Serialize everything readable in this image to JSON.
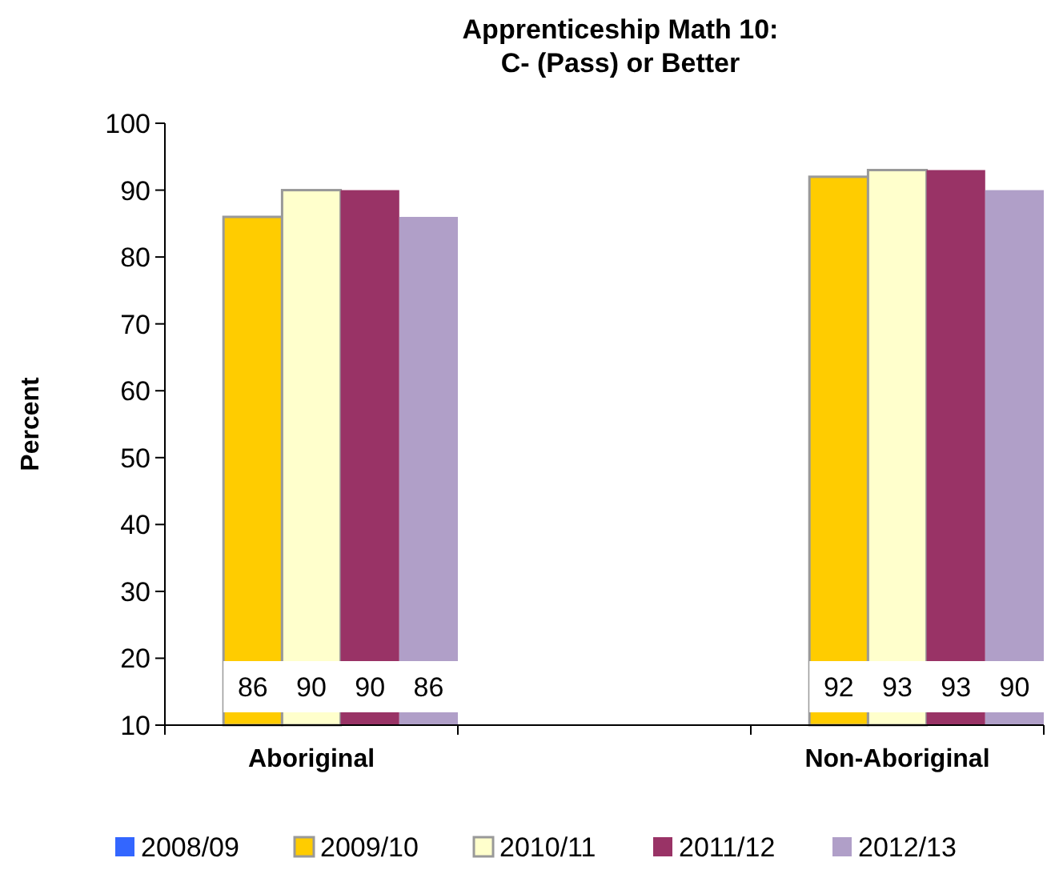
{
  "chart_data": {
    "type": "bar",
    "title": "Apprenticeship Math 10:\nC- (Pass) or Better",
    "ylabel": "Percent",
    "categories": [
      "Aboriginal",
      null,
      "Non-Aboriginal"
    ],
    "series": [
      {
        "name": "2008/09",
        "color": "#3366ff",
        "values": [
          null,
          null,
          null
        ]
      },
      {
        "name": "2009/10",
        "color": "#ffcc00",
        "values": [
          86,
          null,
          92
        ]
      },
      {
        "name": "2010/11",
        "color": "#ffffcc",
        "values": [
          90,
          null,
          93
        ]
      },
      {
        "name": "2011/12",
        "color": "#993366",
        "values": [
          90,
          null,
          93
        ]
      },
      {
        "name": "2012/13",
        "color": "#b09fc8",
        "values": [
          86,
          null,
          90
        ]
      }
    ],
    "ylim": [
      10,
      100
    ],
    "yticks": [
      10,
      20,
      30,
      40,
      50,
      60,
      70,
      80,
      90,
      100
    ],
    "grid": false,
    "legend": "bottom",
    "data_labels": true
  }
}
